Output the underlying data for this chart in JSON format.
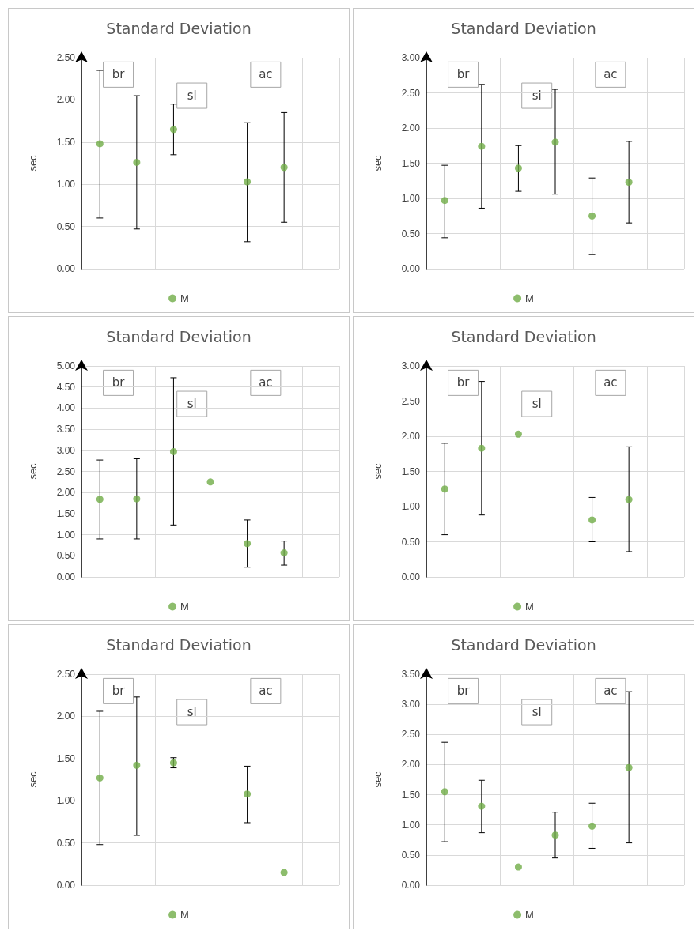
{
  "chart_data": [
    {
      "type": "scatter",
      "title": "Standard Deviation",
      "ylabel": "sec",
      "marker": "circle",
      "grid": true,
      "legend": "bottom",
      "tick_labels": "y",
      "categories": [
        null,
        null,
        null,
        null,
        null,
        null,
        null
      ],
      "ylim": [
        0,
        2.5
      ],
      "yticks": [
        {
          "value": 0,
          "label": "0.00"
        },
        {
          "value": 0.5,
          "label": "0.50"
        },
        {
          "value": 1,
          "label": "1.00"
        },
        {
          "value": 1.5,
          "label": "1.50"
        },
        {
          "value": 2,
          "label": "2.00"
        },
        {
          "value": 2.5,
          "label": "2.50"
        }
      ],
      "series": [
        {
          "name": "M",
          "color": "#70ad47",
          "values": [
            1.48,
            1.26,
            1.65,
            null,
            1.03,
            1.2,
            null
          ],
          "errors": [
            [
              0.6,
              2.35
            ],
            [
              0.47,
              2.05
            ],
            [
              1.35,
              1.95
            ],
            null,
            [
              0.32,
              1.73
            ],
            [
              0.55,
              1.85
            ],
            null
          ]
        }
      ],
      "annotations": [
        "br",
        "sl",
        "ac"
      ]
    },
    {
      "type": "scatter",
      "title": "Standard Deviation",
      "ylabel": "sec",
      "marker": "circle",
      "grid": true,
      "legend": "bottom",
      "tick_labels": "y",
      "categories": [
        null,
        null,
        null,
        null,
        null,
        null,
        null
      ],
      "ylim": [
        0,
        3
      ],
      "yticks": [
        {
          "value": 0,
          "label": "0.00"
        },
        {
          "value": 0.5,
          "label": "0.50"
        },
        {
          "value": 1,
          "label": "1.00"
        },
        {
          "value": 1.5,
          "label": "1.50"
        },
        {
          "value": 2,
          "label": "2.00"
        },
        {
          "value": 2.5,
          "label": "2.50"
        },
        {
          "value": 3,
          "label": "3.00"
        }
      ],
      "series": [
        {
          "name": "M",
          "color": "#70ad47",
          "values": [
            0.97,
            1.74,
            1.43,
            1.8,
            0.75,
            1.23,
            null
          ],
          "errors": [
            [
              0.44,
              1.47
            ],
            [
              0.86,
              2.62
            ],
            [
              1.1,
              1.75
            ],
            [
              1.06,
              2.55
            ],
            [
              0.2,
              1.29
            ],
            [
              0.65,
              1.81
            ],
            null
          ]
        }
      ],
      "annotations": [
        "br",
        "sl",
        "ac"
      ]
    },
    {
      "type": "scatter",
      "title": "Standard Deviation",
      "ylabel": "sec",
      "marker": "circle",
      "grid": true,
      "legend": "bottom",
      "tick_labels": "y",
      "categories": [
        null,
        null,
        null,
        null,
        null,
        null,
        null
      ],
      "ylim": [
        0,
        5
      ],
      "yticks": [
        {
          "value": 0,
          "label": "0.00"
        },
        {
          "value": 0.5,
          "label": "0.50"
        },
        {
          "value": 1,
          "label": "1.00"
        },
        {
          "value": 1.5,
          "label": "1.50"
        },
        {
          "value": 2,
          "label": "2.00"
        },
        {
          "value": 2.5,
          "label": "2.50"
        },
        {
          "value": 3,
          "label": "3.00"
        },
        {
          "value": 3.5,
          "label": "3.50"
        },
        {
          "value": 4,
          "label": "4.00"
        },
        {
          "value": 4.5,
          "label": "4.50"
        },
        {
          "value": 5,
          "label": "5.00"
        }
      ],
      "series": [
        {
          "name": "M",
          "color": "#70ad47",
          "values": [
            1.84,
            1.85,
            2.97,
            2.25,
            0.79,
            0.57,
            null
          ],
          "errors": [
            [
              0.9,
              2.77
            ],
            [
              0.9,
              2.8
            ],
            [
              1.23,
              4.72
            ],
            null,
            [
              0.23,
              1.35
            ],
            [
              0.28,
              0.85
            ],
            null
          ]
        }
      ],
      "annotations": [
        "br",
        "sl",
        "ac"
      ]
    },
    {
      "type": "scatter",
      "title": "Standard Deviation",
      "ylabel": "sec",
      "marker": "circle",
      "grid": true,
      "legend": "bottom",
      "tick_labels": "y",
      "categories": [
        null,
        null,
        null,
        null,
        null,
        null,
        null
      ],
      "ylim": [
        0,
        3
      ],
      "yticks": [
        {
          "value": 0,
          "label": "0.00"
        },
        {
          "value": 0.5,
          "label": "0.50"
        },
        {
          "value": 1,
          "label": "1.00"
        },
        {
          "value": 1.5,
          "label": "1.50"
        },
        {
          "value": 2,
          "label": "2.00"
        },
        {
          "value": 2.5,
          "label": "2.50"
        },
        {
          "value": 3,
          "label": "3.00"
        }
      ],
      "series": [
        {
          "name": "M",
          "color": "#70ad47",
          "values": [
            1.25,
            1.83,
            2.03,
            null,
            0.81,
            1.1,
            null
          ],
          "errors": [
            [
              0.6,
              1.9
            ],
            [
              0.88,
              2.78
            ],
            null,
            null,
            [
              0.5,
              1.13
            ],
            [
              0.36,
              1.85
            ],
            null
          ]
        }
      ],
      "annotations": [
        "br",
        "sl",
        "ac"
      ]
    },
    {
      "type": "scatter",
      "title": "Standard Deviation",
      "ylabel": "sec",
      "marker": "circle",
      "grid": true,
      "legend": "bottom",
      "tick_labels": "y",
      "categories": [
        null,
        null,
        null,
        null,
        null,
        null,
        null
      ],
      "ylim": [
        0,
        2.5
      ],
      "yticks": [
        {
          "value": 0,
          "label": "0.00"
        },
        {
          "value": 0.5,
          "label": "0.50"
        },
        {
          "value": 1,
          "label": "1.00"
        },
        {
          "value": 1.5,
          "label": "1.50"
        },
        {
          "value": 2,
          "label": "2.00"
        },
        {
          "value": 2.5,
          "label": "2.50"
        }
      ],
      "series": [
        {
          "name": "M",
          "color": "#70ad47",
          "values": [
            1.27,
            1.42,
            1.45,
            null,
            1.08,
            0.15,
            null
          ],
          "errors": [
            [
              0.48,
              2.06
            ],
            [
              0.59,
              2.23
            ],
            [
              1.39,
              1.51
            ],
            null,
            [
              0.74,
              1.41
            ],
            null,
            null
          ]
        }
      ],
      "annotations": [
        "br",
        "sl",
        "ac"
      ]
    },
    {
      "type": "scatter",
      "title": "Standard Deviation",
      "ylabel": "sec",
      "marker": "circle",
      "grid": true,
      "legend": "bottom",
      "tick_labels": "y",
      "categories": [
        null,
        null,
        null,
        null,
        null,
        null,
        null
      ],
      "ylim": [
        0,
        3.5
      ],
      "yticks": [
        {
          "value": 0,
          "label": "0.00"
        },
        {
          "value": 0.5,
          "label": "0.50"
        },
        {
          "value": 1,
          "label": "1.00"
        },
        {
          "value": 1.5,
          "label": "1.50"
        },
        {
          "value": 2,
          "label": "2.00"
        },
        {
          "value": 2.5,
          "label": "2.50"
        },
        {
          "value": 3,
          "label": "3.00"
        },
        {
          "value": 3.5,
          "label": "3.50"
        }
      ],
      "series": [
        {
          "name": "M",
          "color": "#70ad47",
          "values": [
            1.55,
            1.31,
            0.3,
            0.83,
            0.98,
            1.95,
            null
          ],
          "errors": [
            [
              0.72,
              2.37
            ],
            [
              0.87,
              1.74
            ],
            null,
            [
              0.45,
              1.21
            ],
            [
              0.61,
              1.36
            ],
            [
              0.7,
              3.21
            ],
            null
          ]
        }
      ],
      "annotations": [
        "br",
        "sl",
        "ac"
      ]
    }
  ]
}
